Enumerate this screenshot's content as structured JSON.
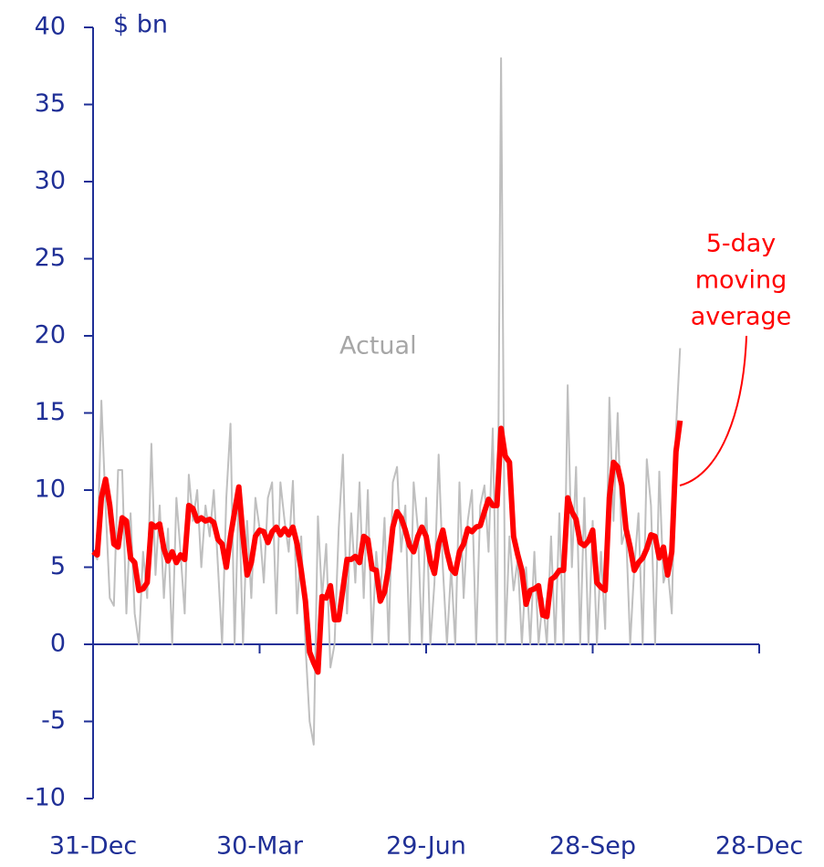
{
  "chart_data": {
    "type": "line",
    "y_label": "$ bn",
    "annotations": [
      {
        "text": "Actual",
        "color": "#a6a6a6"
      },
      {
        "lines": [
          "5-day",
          "moving",
          "average"
        ],
        "color": "#ff0000"
      }
    ],
    "categories": [
      "31-Dec",
      null,
      null,
      null,
      null,
      null,
      null,
      null,
      null,
      null,
      null,
      null,
      null,
      null,
      null,
      null,
      null,
      null,
      null,
      null,
      null,
      null,
      null,
      null,
      null,
      null,
      null,
      null,
      null,
      null,
      null,
      null,
      null,
      null,
      null,
      null,
      null,
      null,
      null,
      null,
      "30-Mar",
      null,
      null,
      null,
      null,
      null,
      null,
      null,
      null,
      null,
      null,
      null,
      null,
      null,
      null,
      null,
      null,
      null,
      null,
      null,
      null,
      null,
      null,
      null,
      null,
      null,
      null,
      null,
      null,
      null,
      null,
      null,
      null,
      null,
      null,
      null,
      null,
      null,
      null,
      null,
      "29-Jun",
      null,
      null,
      null,
      null,
      null,
      null,
      null,
      null,
      null,
      null,
      null,
      null,
      null,
      null,
      null,
      null,
      null,
      null,
      null,
      null,
      null,
      null,
      null,
      null,
      null,
      null,
      null,
      null,
      null,
      null,
      null,
      null,
      null,
      null,
      null,
      null,
      null,
      null,
      null,
      "28-Sep",
      null,
      null,
      null,
      null,
      null,
      null,
      null,
      null,
      null,
      null,
      null,
      null,
      null,
      null,
      null,
      null,
      null,
      null,
      null,
      null,
      null,
      null,
      null,
      null,
      null,
      null,
      null,
      null,
      null,
      null,
      null,
      null,
      null,
      null,
      null,
      null,
      null,
      null,
      null,
      "28-Dec"
    ],
    "series": [
      {
        "name": "Actual",
        "color": "#bfbfbf",
        "width": 2,
        "values": [
          6,
          5.5,
          15.8,
          9,
          3,
          2.5,
          11.3,
          11.3,
          2,
          8.5,
          2,
          0,
          6,
          3,
          13,
          4.5,
          9,
          3,
          7.5,
          0,
          9.5,
          6,
          2,
          11,
          8,
          10,
          5,
          9,
          7,
          10,
          5,
          0,
          9.5,
          14.3,
          0,
          10,
          0,
          8,
          3,
          9.5,
          7.5,
          4,
          9.5,
          10.5,
          2,
          10.5,
          8,
          6,
          10.6,
          2,
          7,
          0,
          -5,
          -6.5,
          8.3,
          3,
          6.5,
          -1.5,
          0,
          7.5,
          12.3,
          2,
          8.5,
          4,
          10.5,
          3,
          10,
          0,
          6,
          3,
          8.2,
          0,
          10.5,
          11.5,
          6,
          9,
          0,
          10.5,
          7.5,
          0,
          9.5,
          0,
          4,
          12.3,
          5,
          0,
          5,
          0,
          10.5,
          3,
          8,
          10,
          0,
          9,
          10.3,
          6,
          14,
          0,
          38,
          0,
          7,
          3.5,
          5.5,
          0,
          5,
          0,
          6,
          0,
          3,
          0,
          7,
          0,
          8.5,
          0,
          16.8,
          5,
          11.5,
          0,
          9.5,
          0,
          8,
          0,
          6,
          1,
          16,
          8,
          15,
          6.5,
          7.5,
          0,
          5,
          8.5,
          0,
          12,
          9,
          0,
          11.2,
          4,
          5,
          2,
          14,
          19.2,
          null,
          null,
          null,
          null,
          null,
          null,
          null,
          null,
          null,
          null,
          null,
          null,
          null,
          null,
          null,
          null,
          null,
          null,
          null
        ]
      },
      {
        "name": "5-day moving average",
        "color": "#ff0000",
        "width": 6,
        "values": [
          6,
          5.8,
          9.5,
          10.7,
          9,
          6.5,
          6.3,
          8.2,
          8,
          5.6,
          5.3,
          3.5,
          3.6,
          4,
          7.8,
          7.6,
          7.8,
          6.2,
          5.4,
          6,
          5.3,
          5.8,
          5.5,
          9,
          8.8,
          8,
          8.2,
          8,
          8.1,
          7.9,
          6.8,
          6.5,
          5,
          7,
          8.6,
          10.2,
          7,
          4.5,
          5.3,
          7,
          7.4,
          7.3,
          6.6,
          7.3,
          7.6,
          7.1,
          7.5,
          7.1,
          7.6,
          6.5,
          4.8,
          2.8,
          -0.5,
          -1.2,
          -1.8,
          3.1,
          3,
          3.8,
          1.6,
          1.6,
          3.6,
          5.5,
          5.5,
          5.7,
          5.3,
          7,
          6.8,
          4.9,
          4.8,
          2.8,
          3.4,
          5,
          7.6,
          8.6,
          8.2,
          7.4,
          6.4,
          6,
          7,
          7.6,
          7,
          5.4,
          4.6,
          6.5,
          7.4,
          6,
          4.9,
          4.6,
          6,
          6.5,
          7.5,
          7.3,
          7.6,
          7.7,
          8.6,
          9.4,
          9,
          9,
          14,
          12.2,
          11.8,
          7,
          5.8,
          4.8,
          2.6,
          3.5,
          3.6,
          3.8,
          1.9,
          1.8,
          4.2,
          4.4,
          4.8,
          4.8,
          9.5,
          8.6,
          8.1,
          6.6,
          6.4,
          6.7,
          7.4,
          4,
          3.7,
          3.5,
          9.5,
          11.8,
          11.5,
          10.3,
          7.5,
          6.3,
          4.8,
          5.3,
          5.6,
          6.2,
          7.1,
          7,
          5.6,
          6.3,
          4.5,
          6,
          12.5,
          14.5,
          null,
          null,
          null,
          null,
          null,
          null,
          null,
          null,
          null,
          null,
          null,
          null,
          null,
          null,
          null,
          null,
          null,
          null,
          null
        ]
      }
    ],
    "axis_color": "#1f2f96",
    "ylim": [
      -10,
      40
    ],
    "yticks": [
      -10,
      -5,
      0,
      5,
      10,
      15,
      20,
      25,
      30,
      35,
      40
    ]
  }
}
